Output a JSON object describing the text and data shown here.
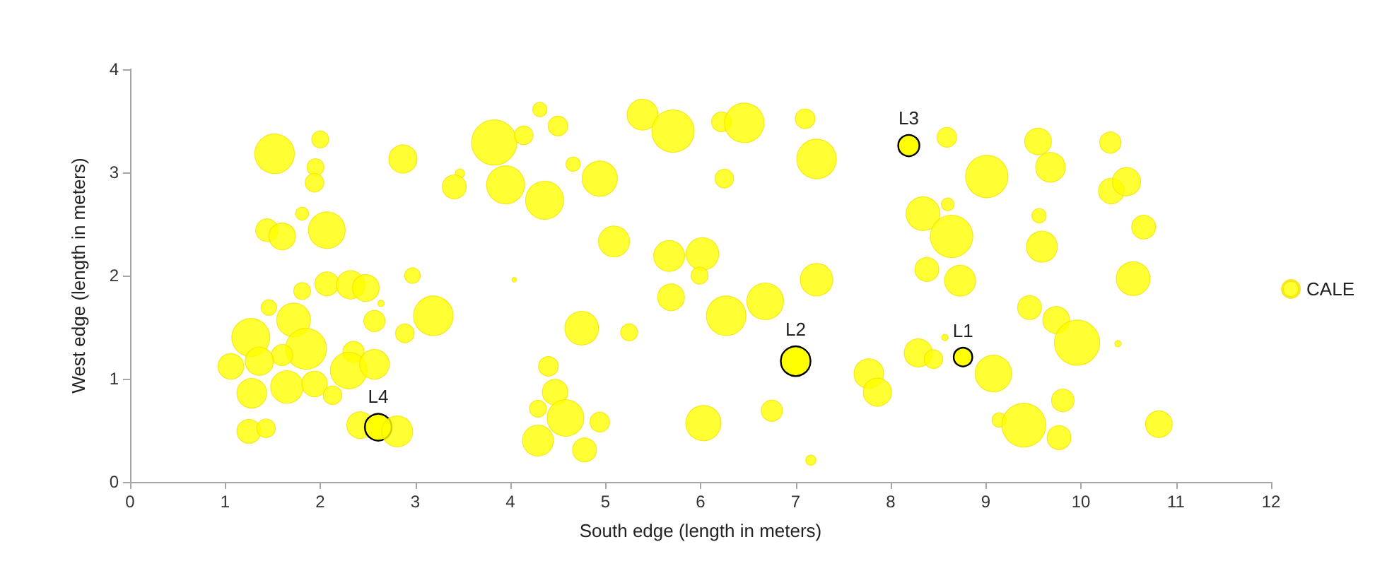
{
  "chart_data": {
    "type": "bubble",
    "xlabel": "South edge (length in meters)",
    "ylabel": "West edge (length in meters)",
    "xlim": [
      0,
      12
    ],
    "xticks": [
      0,
      1,
      2,
      3,
      4,
      5,
      6,
      7,
      8,
      9,
      10,
      11,
      12
    ],
    "ylim": [
      0,
      4
    ],
    "yticks": [
      0,
      1,
      2,
      3,
      4
    ],
    "grid": false,
    "legend": "right",
    "marker": "circle",
    "series": [
      {
        "name": "CALE",
        "color": "#ffff00",
        "x": [
          1.52,
          2.0,
          1.95,
          1.94,
          1.81,
          1.44,
          1.6,
          2.07,
          2.87,
          2.07,
          2.32,
          2.48,
          1.81,
          2.97,
          2.64,
          1.46,
          1.72,
          2.57,
          2.89,
          1.27,
          1.85,
          1.6,
          2.35,
          1.06,
          1.36,
          2.3,
          2.57,
          1.28,
          1.65,
          1.94,
          2.13,
          1.25,
          1.43,
          2.42,
          2.61,
          2.81,
          3.83,
          4.14,
          4.31,
          4.5,
          3.47,
          3.41,
          3.95,
          4.36,
          4.66,
          4.94,
          5.39,
          5.71,
          6.22,
          6.46,
          6.25,
          5.09,
          5.67,
          6.02,
          5.99,
          5.69,
          6.27,
          6.68,
          4.04,
          3.19,
          4.75,
          5.25,
          4.4,
          4.47,
          4.29,
          4.58,
          4.29,
          4.94,
          4.78,
          6.03,
          6.75,
          7.16,
          7.1,
          7.22,
          7.22,
          7.0,
          7.77,
          7.86,
          8.19,
          8.59,
          9.01,
          8.34,
          8.6,
          8.64,
          8.38,
          8.73,
          8.57,
          8.29,
          8.45,
          8.76,
          9.08,
          9.14,
          9.4,
          9.77,
          9.81,
          9.46,
          9.74,
          9.96,
          10.39,
          9.55,
          9.68,
          10.31,
          10.32,
          10.48,
          9.56,
          10.66,
          9.59,
          10.55,
          10.82
        ],
        "values": [
          3.18,
          3.32,
          3.05,
          2.9,
          2.6,
          2.44,
          2.38,
          2.44,
          3.13,
          1.92,
          1.91,
          1.88,
          1.85,
          2.0,
          1.73,
          1.69,
          1.57,
          1.56,
          1.44,
          1.4,
          1.29,
          1.23,
          1.26,
          1.12,
          1.17,
          1.08,
          1.14,
          0.86,
          0.92,
          0.95,
          0.84,
          0.49,
          0.52,
          0.55,
          0.53,
          0.49,
          3.29,
          3.36,
          3.61,
          3.45,
          2.99,
          2.86,
          2.88,
          2.73,
          3.08,
          2.94,
          3.56,
          3.4,
          3.49,
          3.48,
          2.94,
          2.33,
          2.19,
          2.21,
          2.0,
          1.79,
          1.61,
          1.75,
          1.96,
          1.61,
          1.49,
          1.45,
          1.12,
          0.87,
          0.71,
          0.62,
          0.4,
          0.58,
          0.31,
          0.57,
          0.69,
          0.21,
          3.52,
          3.13,
          1.96,
          1.17,
          1.05,
          0.87,
          3.26,
          3.34,
          2.96,
          2.6,
          2.69,
          2.38,
          2.06,
          1.95,
          1.4,
          1.25,
          1.19,
          1.21,
          1.05,
          0.6,
          0.55,
          0.43,
          0.79,
          1.69,
          1.57,
          1.35,
          1.34,
          3.3,
          3.05,
          3.29,
          2.82,
          2.91,
          2.58,
          2.47,
          2.28,
          1.97,
          0.56
        ],
        "sizes": [
          0.77,
          0.14,
          0.14,
          0.17,
          0.08,
          0.25,
          0.35,
          0.66,
          0.39,
          0.28,
          0.39,
          0.35,
          0.14,
          0.12,
          0.02,
          0.12,
          0.56,
          0.22,
          0.17,
          0.71,
          0.82,
          0.22,
          0.22,
          0.32,
          0.39,
          0.66,
          0.43,
          0.43,
          0.52,
          0.32,
          0.17,
          0.28,
          0.17,
          0.35,
          0.35,
          0.47,
          1,
          0.17,
          0.1,
          0.19,
          0.04,
          0.28,
          0.71,
          0.71,
          0.1,
          0.61,
          0.47,
          0.88,
          0.19,
          0.77,
          0.17,
          0.47,
          0.47,
          0.52,
          0.14,
          0.35,
          0.77,
          0.66,
          0.01,
          0.77,
          0.56,
          0.14,
          0.19,
          0.32,
          0.14,
          0.66,
          0.47,
          0.19,
          0.28,
          0.61,
          0.22,
          0.05,
          0.19,
          0.77,
          0.52,
          0.43,
          0.43,
          0.39,
          0.22,
          0.19,
          0.88,
          0.56,
          0.08,
          0.88,
          0.28,
          0.47,
          0.02,
          0.39,
          0.17,
          0.17,
          0.66,
          0.1,
          0.94,
          0.28,
          0.25,
          0.28,
          0.35,
          1,
          0.02,
          0.35,
          0.43,
          0.22,
          0.32,
          0.39,
          0.1,
          0.28,
          0.47,
          0.56,
          0.35
        ]
      }
    ],
    "annotations": [
      {
        "text": "L1",
        "x": 8.76,
        "y": 1.21
      },
      {
        "text": "L2",
        "x": 7.0,
        "y": 1.17
      },
      {
        "text": "L3",
        "x": 8.19,
        "y": 3.26
      },
      {
        "text": "L4",
        "x": 2.61,
        "y": 0.53
      }
    ]
  }
}
